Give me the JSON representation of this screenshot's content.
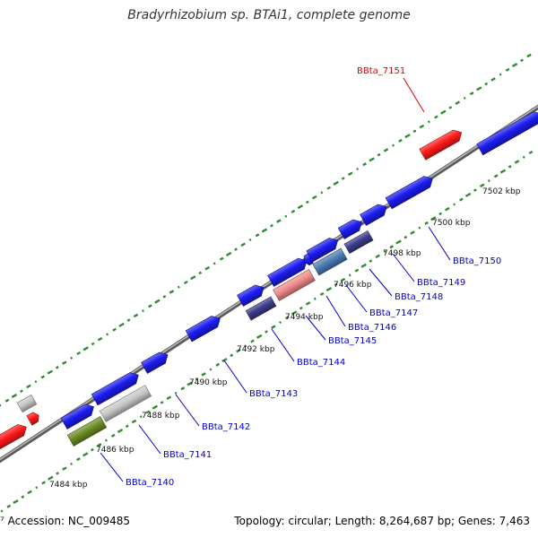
{
  "title": "Bradyrhizobium sp. BTAi1, complete genome",
  "footer": {
    "accession": "⁷ Accession: NC_009485",
    "summary": "Topology: circular; Length: 8,264,687 bp; Genes: 7,463"
  },
  "colors": {
    "backbone": "#7a7a7a",
    "gc_ticks": "#2e8b2e",
    "gene_blue": "#1c1cf0",
    "gene_red": "#ff1a1a",
    "gene_grey": "#c8c8c8",
    "gene_pink": "#f08a8a",
    "gene_olive": "#6b8e23",
    "gene_steel": "#4a7bb5",
    "gene_navy": "#3c3c8c",
    "label_blue": "#0000cc",
    "label_red": "#dd0000"
  },
  "ticks": [
    {
      "label": "7484 kbp"
    },
    {
      "label": "7486 kbp"
    },
    {
      "label": "7488 kbp"
    },
    {
      "label": "7490 kbp"
    },
    {
      "label": "7492 kbp"
    },
    {
      "label": "7494 kbp"
    },
    {
      "label": "7496 kbp"
    },
    {
      "label": "7498 kbp"
    },
    {
      "label": "7500 kbp"
    },
    {
      "label": "7502 kbp"
    }
  ],
  "gene_labels": [
    {
      "name": "BBta_7140",
      "color": "label_blue"
    },
    {
      "name": "BBta_7141",
      "color": "label_blue"
    },
    {
      "name": "BBta_7142",
      "color": "label_blue"
    },
    {
      "name": "BBta_7143",
      "color": "label_blue"
    },
    {
      "name": "BBta_7144",
      "color": "label_blue"
    },
    {
      "name": "BBta_7145",
      "color": "label_blue"
    },
    {
      "name": "BBta_7146",
      "color": "label_blue"
    },
    {
      "name": "BBta_7147",
      "color": "label_blue"
    },
    {
      "name": "BBta_7148",
      "color": "label_blue"
    },
    {
      "name": "BBta_7149",
      "color": "label_blue"
    },
    {
      "name": "BBta_7150",
      "color": "label_blue"
    },
    {
      "name": "BBta_7151",
      "color": "label_red"
    }
  ]
}
